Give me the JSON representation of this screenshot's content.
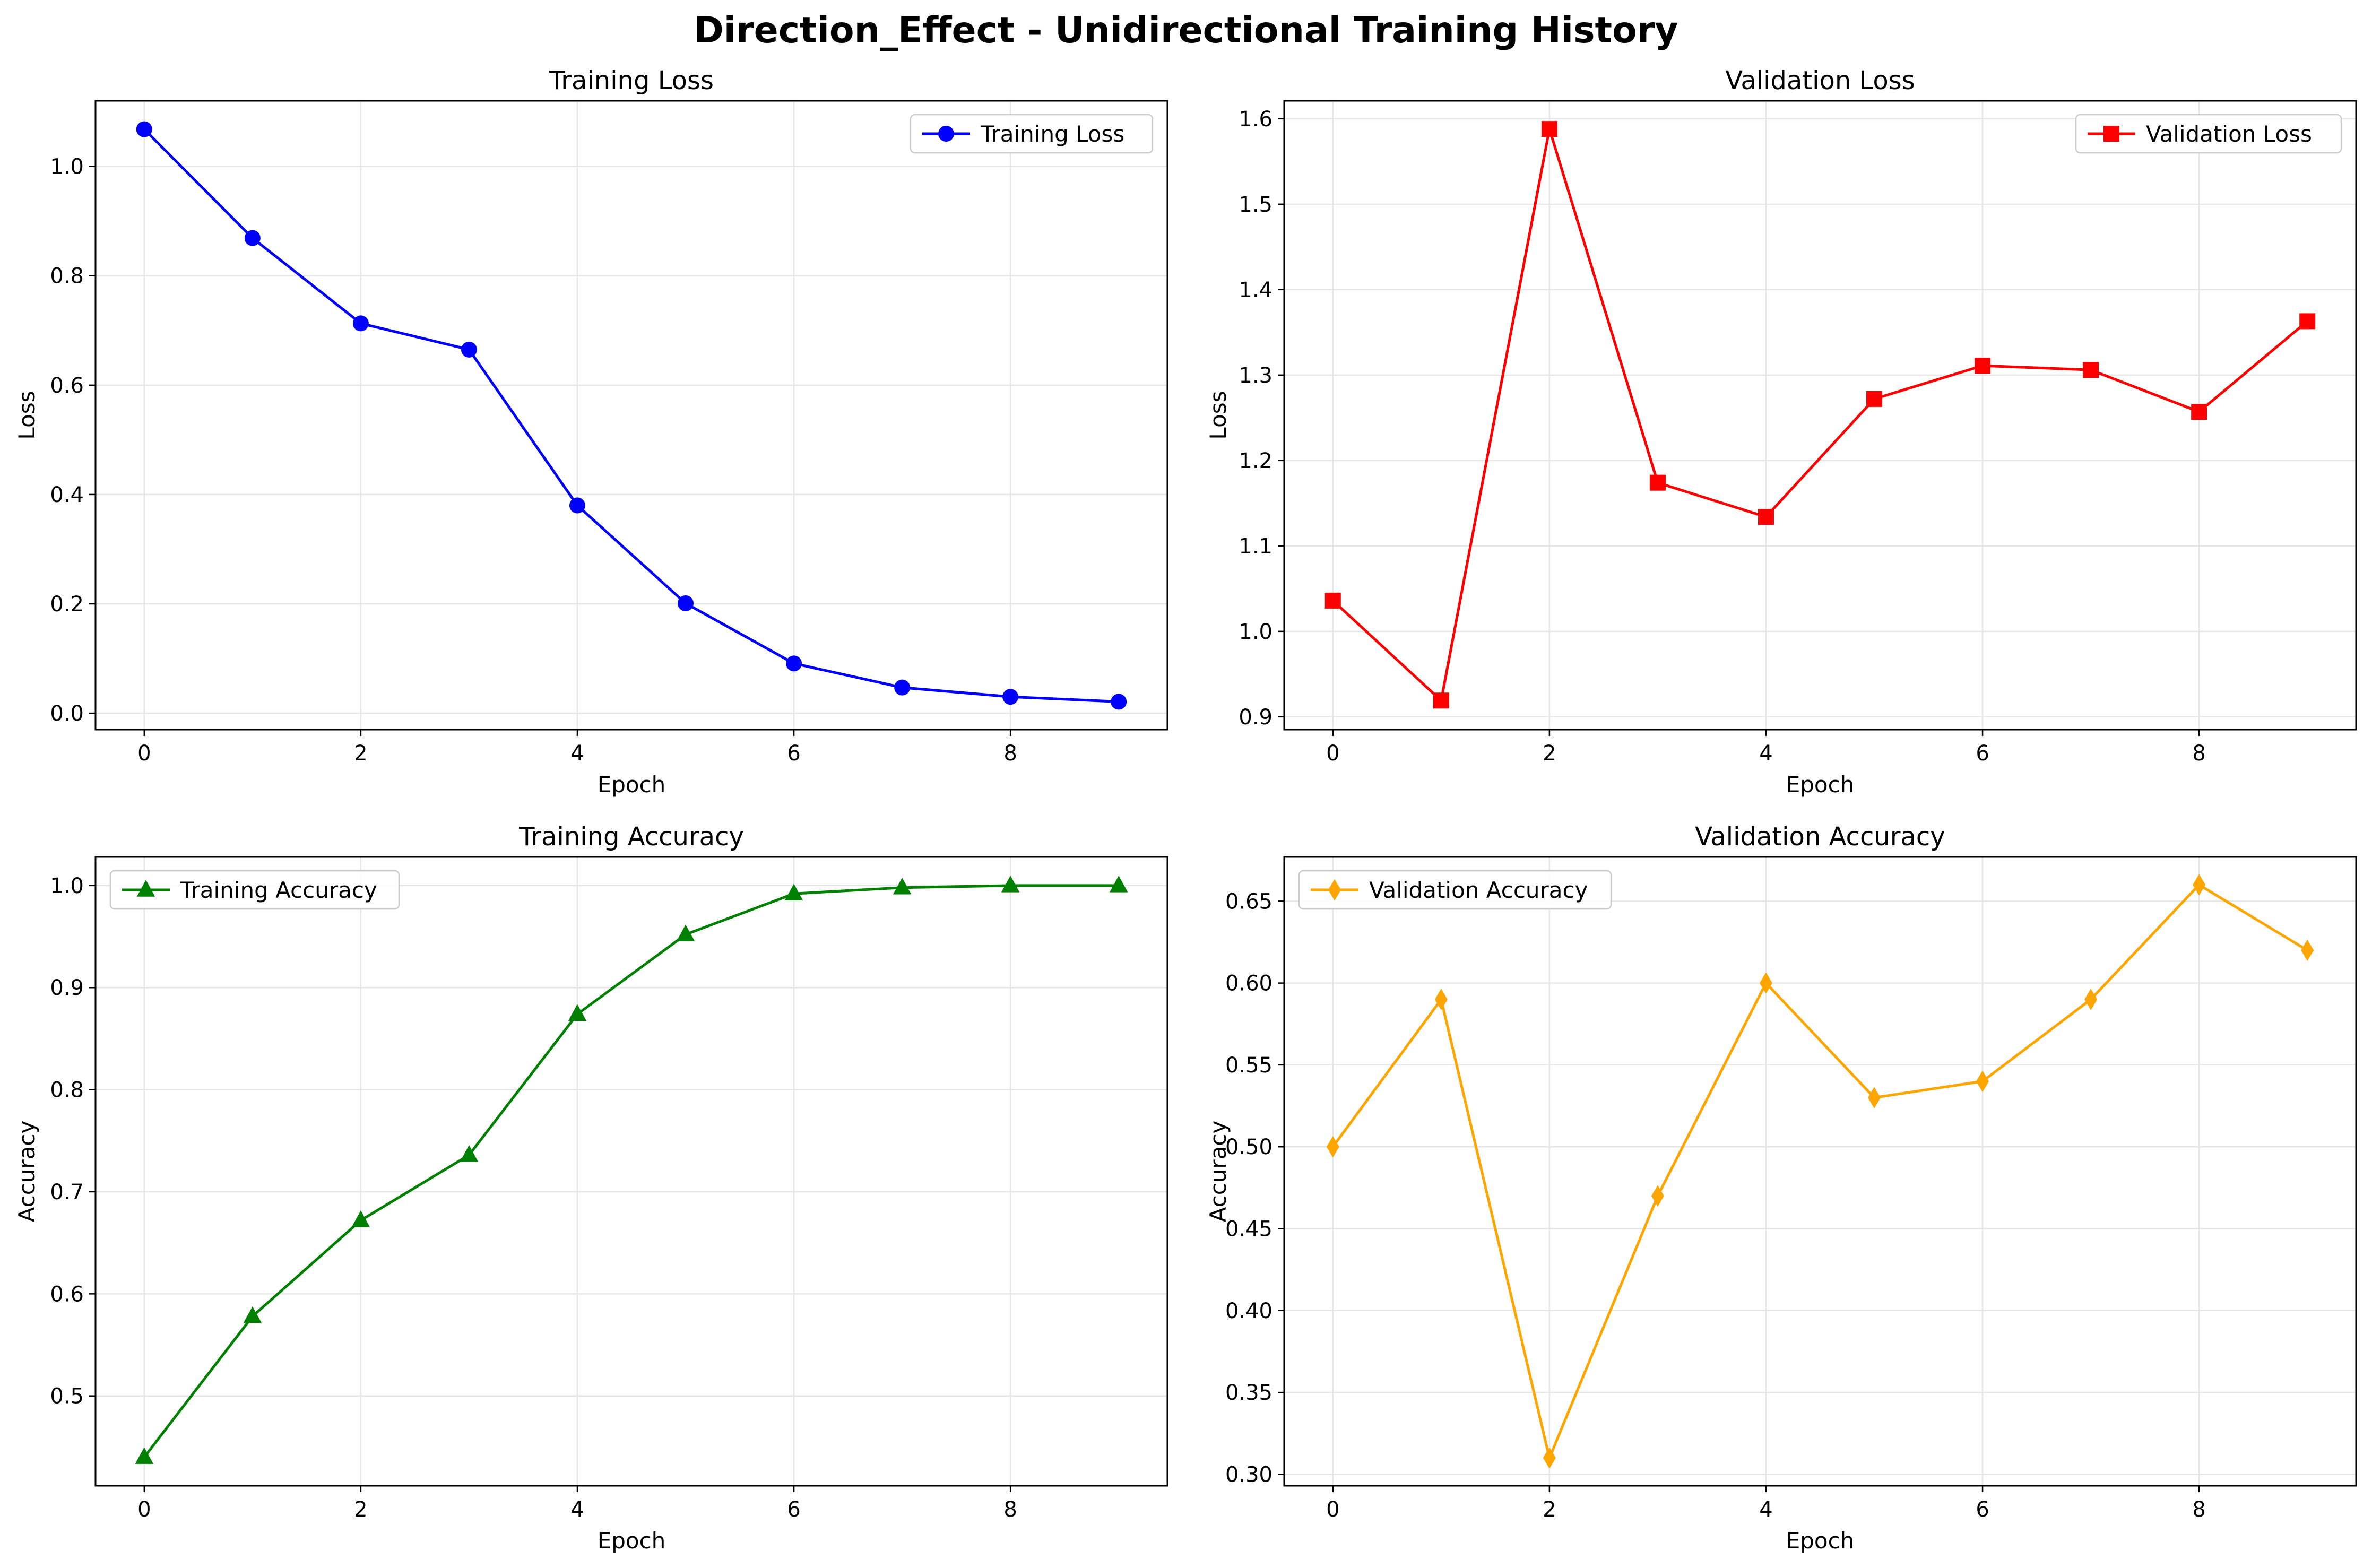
{
  "figure": {
    "suptitle": "Direction_Effect - Unidirectional Training History"
  },
  "chart_data": [
    {
      "type": "line",
      "title": "Training Loss",
      "xlabel": "Epoch",
      "ylabel": "Loss",
      "x": [
        0,
        1,
        2,
        3,
        4,
        5,
        6,
        7,
        8,
        9
      ],
      "xticks": [
        0,
        2,
        4,
        6,
        8
      ],
      "xlim": [
        -0.45,
        9.45
      ],
      "ylim": [
        -0.03,
        1.12
      ],
      "yticks": [
        0.0,
        0.2,
        0.4,
        0.6,
        0.8,
        1.0
      ],
      "ytick_labels": [
        "0.0",
        "0.2",
        "0.4",
        "0.6",
        "0.8",
        "1.0"
      ],
      "grid": true,
      "legend_position": "upper right",
      "series": [
        {
          "name": "Training Loss",
          "color": "#0000ff",
          "marker": "circle",
          "values": [
            1.068,
            0.869,
            0.713,
            0.665,
            0.38,
            0.201,
            0.091,
            0.047,
            0.03,
            0.021
          ]
        }
      ]
    },
    {
      "type": "line",
      "title": "Validation Loss",
      "xlabel": "Epoch",
      "ylabel": "Loss",
      "x": [
        0,
        1,
        2,
        3,
        4,
        5,
        6,
        7,
        8,
        9
      ],
      "xticks": [
        0,
        2,
        4,
        6,
        8
      ],
      "xlim": [
        -0.45,
        9.45
      ],
      "ylim": [
        0.885,
        1.621
      ],
      "yticks": [
        0.9,
        1.0,
        1.1,
        1.2,
        1.3,
        1.4,
        1.5,
        1.6
      ],
      "ytick_labels": [
        "0.9",
        "1.0",
        "1.1",
        "1.2",
        "1.3",
        "1.4",
        "1.5",
        "1.6"
      ],
      "grid": true,
      "legend_position": "upper right",
      "series": [
        {
          "name": "Validation Loss",
          "color": "#ff0000",
          "marker": "square",
          "values": [
            1.036,
            0.919,
            1.588,
            1.174,
            1.134,
            1.272,
            1.311,
            1.306,
            1.257,
            1.363
          ]
        }
      ]
    },
    {
      "type": "line",
      "title": "Training Accuracy",
      "xlabel": "Epoch",
      "ylabel": "Accuracy",
      "x": [
        0,
        1,
        2,
        3,
        4,
        5,
        6,
        7,
        8,
        9
      ],
      "xticks": [
        0,
        2,
        4,
        6,
        8
      ],
      "xlim": [
        -0.45,
        9.45
      ],
      "ylim": [
        0.412,
        1.028
      ],
      "yticks": [
        0.5,
        0.6,
        0.7,
        0.8,
        0.9,
        1.0
      ],
      "ytick_labels": [
        "0.5",
        "0.6",
        "0.7",
        "0.8",
        "0.9",
        "1.0"
      ],
      "grid": true,
      "legend_position": "upper left",
      "series": [
        {
          "name": "Training Accuracy",
          "color": "#008000",
          "marker": "triangle",
          "values": [
            0.44,
            0.578,
            0.672,
            0.736,
            0.874,
            0.952,
            0.992,
            0.998,
            1.0,
            1.0
          ]
        }
      ]
    },
    {
      "type": "line",
      "title": "Validation Accuracy",
      "xlabel": "Epoch",
      "ylabel": "Accuracy",
      "x": [
        0,
        1,
        2,
        3,
        4,
        5,
        6,
        7,
        8,
        9
      ],
      "xticks": [
        0,
        2,
        4,
        6,
        8
      ],
      "xlim": [
        -0.45,
        9.45
      ],
      "ylim": [
        0.293,
        0.677
      ],
      "yticks": [
        0.3,
        0.35,
        0.4,
        0.45,
        0.5,
        0.55,
        0.6,
        0.65
      ],
      "ytick_labels": [
        "0.30",
        "0.35",
        "0.40",
        "0.45",
        "0.50",
        "0.55",
        "0.60",
        "0.65"
      ],
      "grid": true,
      "legend_position": "upper left",
      "series": [
        {
          "name": "Validation Accuracy",
          "color": "#ffa500",
          "marker": "diamond",
          "values": [
            0.5,
            0.59,
            0.31,
            0.47,
            0.6,
            0.53,
            0.54,
            0.59,
            0.66,
            0.62
          ]
        }
      ]
    }
  ]
}
